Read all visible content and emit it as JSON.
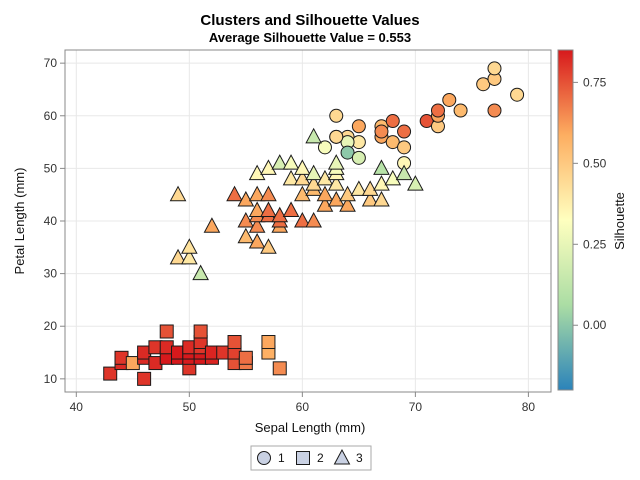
{
  "chart_data": {
    "type": "scatter",
    "title": "Clusters and Silhouette Values",
    "subtitle": "Average Silhouette Value = 0.553",
    "xlabel": "Sepal Length (mm)",
    "ylabel": "Petal Length (mm)",
    "xlim": [
      39,
      82
    ],
    "ylim": [
      7.5,
      72.5
    ],
    "xticks": [
      "40",
      "50",
      "60",
      "70",
      "80"
    ],
    "yticks": [
      "10",
      "20",
      "30",
      "40",
      "50",
      "60",
      "70"
    ],
    "grid": true,
    "colorbar": {
      "label": "Silhouette",
      "range": [
        -0.2,
        0.85
      ],
      "ticks": [
        "0.00",
        "0.25",
        "0.50",
        "0.75"
      ],
      "colors": [
        "#2b83ba",
        "#abdda4",
        "#ffffbf",
        "#fdae61",
        "#d7191c"
      ]
    },
    "legend": {
      "position": "bottom",
      "entries": [
        "1",
        "2",
        "3"
      ]
    },
    "series": [
      {
        "name": "1",
        "marker": "circle",
        "points": [
          [
            63,
            60,
            0.45
          ],
          [
            65,
            58,
            0.6
          ],
          [
            67,
            58,
            0.55
          ],
          [
            64,
            56,
            0.45
          ],
          [
            65,
            55,
            0.4
          ],
          [
            67,
            56,
            0.6
          ],
          [
            68,
            59,
            0.7
          ],
          [
            69,
            57,
            0.7
          ],
          [
            68,
            55,
            0.55
          ],
          [
            69,
            54,
            0.5
          ],
          [
            67,
            57,
            0.65
          ],
          [
            63,
            56,
            0.4
          ],
          [
            64,
            55,
            0.25
          ],
          [
            62,
            54,
            0.3
          ],
          [
            64,
            53,
            0.0
          ],
          [
            65,
            52,
            0.2
          ],
          [
            69,
            51,
            0.35
          ],
          [
            71,
            59,
            0.75
          ],
          [
            72,
            58,
            0.5
          ],
          [
            72,
            60,
            0.6
          ],
          [
            72,
            61,
            0.7
          ],
          [
            73,
            63,
            0.6
          ],
          [
            74,
            61,
            0.55
          ],
          [
            76,
            66,
            0.5
          ],
          [
            77,
            67,
            0.5
          ],
          [
            77,
            69,
            0.45
          ],
          [
            77,
            61,
            0.65
          ],
          [
            79,
            64,
            0.45
          ],
          [
            63,
            56,
            0.45
          ]
        ]
      },
      {
        "name": "2",
        "marker": "square",
        "points": [
          [
            43,
            11,
            0.8
          ],
          [
            44,
            13,
            0.82
          ],
          [
            44,
            14,
            0.8
          ],
          [
            45,
            13,
            0.6
          ],
          [
            46,
            10,
            0.8
          ],
          [
            46,
            14,
            0.82
          ],
          [
            46,
            15,
            0.82
          ],
          [
            47,
            13,
            0.82
          ],
          [
            47,
            16,
            0.8
          ],
          [
            48,
            14,
            0.85
          ],
          [
            48,
            16,
            0.82
          ],
          [
            48,
            19,
            0.75
          ],
          [
            49,
            14,
            0.85
          ],
          [
            49,
            15,
            0.85
          ],
          [
            50,
            12,
            0.8
          ],
          [
            50,
            14,
            0.85
          ],
          [
            50,
            15,
            0.85
          ],
          [
            50,
            16,
            0.82
          ],
          [
            51,
            14,
            0.85
          ],
          [
            51,
            15,
            0.85
          ],
          [
            51,
            16,
            0.8
          ],
          [
            51,
            17,
            0.8
          ],
          [
            51,
            19,
            0.75
          ],
          [
            52,
            14,
            0.83
          ],
          [
            52,
            15,
            0.83
          ],
          [
            53,
            15,
            0.8
          ],
          [
            54,
            13,
            0.75
          ],
          [
            54,
            15,
            0.78
          ],
          [
            54,
            17,
            0.75
          ],
          [
            55,
            13,
            0.68
          ],
          [
            55,
            14,
            0.7
          ],
          [
            57,
            15,
            0.58
          ],
          [
            57,
            17,
            0.6
          ],
          [
            58,
            12,
            0.65
          ]
        ]
      },
      {
        "name": "3",
        "marker": "triangle",
        "points": [
          [
            49,
            33,
            0.45
          ],
          [
            49,
            45,
            0.45
          ],
          [
            50,
            33,
            0.4
          ],
          [
            50,
            35,
            0.42
          ],
          [
            51,
            30,
            0.15
          ],
          [
            52,
            39,
            0.6
          ],
          [
            54,
            45,
            0.7
          ],
          [
            55,
            37,
            0.55
          ],
          [
            55,
            40,
            0.65
          ],
          [
            55,
            44,
            0.6
          ],
          [
            56,
            36,
            0.6
          ],
          [
            56,
            39,
            0.65
          ],
          [
            56,
            41,
            0.65
          ],
          [
            56,
            42,
            0.6
          ],
          [
            56,
            45,
            0.6
          ],
          [
            56,
            49,
            0.35
          ],
          [
            57,
            35,
            0.5
          ],
          [
            57,
            41,
            0.7
          ],
          [
            57,
            42,
            0.7
          ],
          [
            57,
            45,
            0.65
          ],
          [
            57,
            50,
            0.35
          ],
          [
            58,
            39,
            0.6
          ],
          [
            58,
            40,
            0.7
          ],
          [
            58,
            41,
            0.7
          ],
          [
            58,
            51,
            0.2
          ],
          [
            59,
            42,
            0.7
          ],
          [
            59,
            48,
            0.4
          ],
          [
            59,
            51,
            0.3
          ],
          [
            60,
            40,
            0.7
          ],
          [
            60,
            45,
            0.55
          ],
          [
            60,
            48,
            0.45
          ],
          [
            60,
            50,
            0.35
          ],
          [
            61,
            40,
            0.65
          ],
          [
            61,
            46,
            0.55
          ],
          [
            61,
            47,
            0.45
          ],
          [
            61,
            49,
            0.25
          ],
          [
            62,
            43,
            0.6
          ],
          [
            62,
            45,
            0.6
          ],
          [
            62,
            48,
            0.4
          ],
          [
            63,
            44,
            0.6
          ],
          [
            63,
            47,
            0.4
          ],
          [
            63,
            49,
            0.35
          ],
          [
            63,
            50,
            0.3
          ],
          [
            63,
            51,
            0.25
          ],
          [
            64,
            43,
            0.6
          ],
          [
            64,
            45,
            0.5
          ],
          [
            65,
            46,
            0.4
          ],
          [
            66,
            44,
            0.5
          ],
          [
            66,
            46,
            0.45
          ],
          [
            67,
            44,
            0.45
          ],
          [
            67,
            47,
            0.35
          ],
          [
            67,
            50,
            0.1
          ],
          [
            68,
            48,
            0.3
          ],
          [
            69,
            49,
            0.15
          ],
          [
            70,
            47,
            0.2
          ],
          [
            61,
            56,
            0.15
          ]
        ]
      }
    ]
  }
}
